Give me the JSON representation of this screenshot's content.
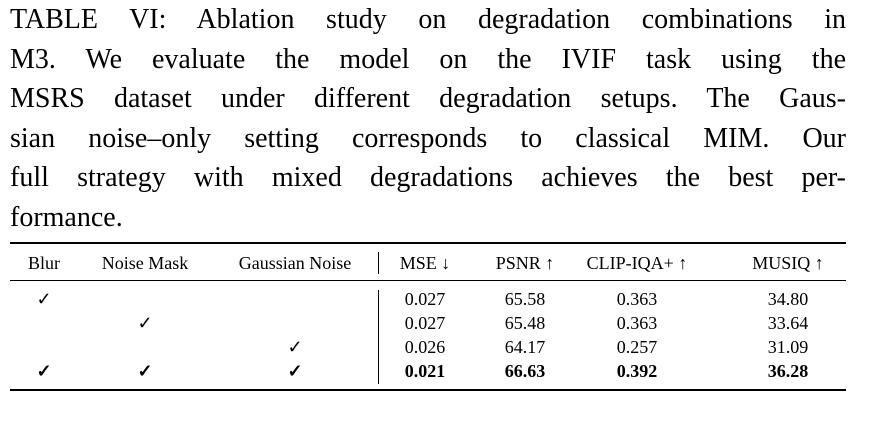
{
  "caption": {
    "lines": [
      "TABLE VI: Ablation study on degradation combinations in",
      "M3. We evaluate the model on the IVIF task using the",
      "MSRS dataset under different degradation setups. The Gaus-",
      "sian noise–only setting corresponds to classical MIM. Our",
      "full strategy with mixed degradations achieves the best per-",
      "formance."
    ]
  },
  "table": {
    "header": [
      "Blur",
      "Noise Mask",
      "Gaussian Noise",
      "MSE ↓",
      "PSNR ↑",
      "CLIP-IQA+ ↑",
      "MUSIQ ↑"
    ],
    "rows": [
      [
        "✓",
        null,
        null,
        "0.027",
        "65.58",
        "0.363",
        "34.80"
      ],
      [
        null,
        "✓",
        null,
        "0.027",
        "65.48",
        "0.363",
        "33.64"
      ],
      [
        null,
        null,
        "✓",
        "0.026",
        "64.17",
        "0.257",
        "31.09"
      ],
      [
        "✓",
        "✓",
        "✓",
        "0.021",
        "66.63",
        "0.392",
        "36.28"
      ]
    ]
  }
}
